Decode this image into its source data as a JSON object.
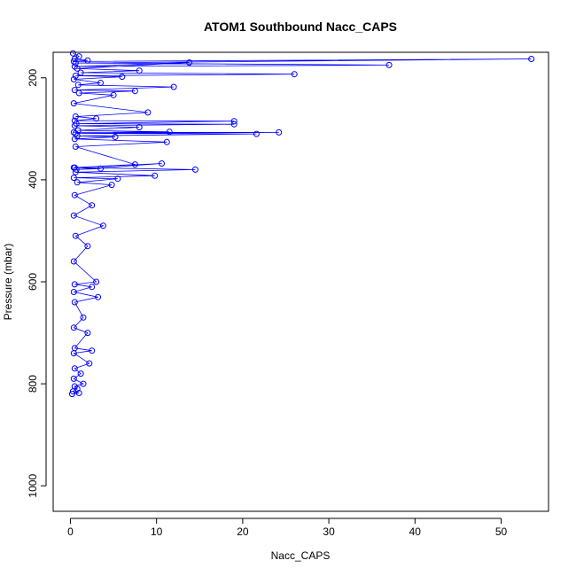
{
  "chart_data": {
    "type": "scatter",
    "title": "ATOM1 Southbound Nacc_CAPS",
    "xlabel": "Nacc_CAPS",
    "ylabel": "Pressure (mbar)",
    "xlim": [
      -2,
      55.5
    ],
    "ylim": [
      1050,
      150
    ],
    "y_reversed": true,
    "x_ticks": [
      0,
      10,
      20,
      30,
      40,
      50
    ],
    "y_ticks": [
      200,
      400,
      600,
      800,
      1000
    ],
    "grid": false,
    "legend": "none",
    "marker": "open-circle",
    "connected": true,
    "color": "#0000ff",
    "series": [
      {
        "x": [
          0.3,
          1.0,
          0.5,
          2.0,
          0.4,
          53.5,
          0.6,
          37.0,
          0.5,
          13.8,
          0.8,
          8.0,
          1.2,
          26.0,
          0.6,
          6.0,
          0.4,
          3.5,
          0.9,
          12.0,
          0.5,
          7.5,
          1.0,
          5.0,
          0.4,
          9.0,
          0.6,
          3.0,
          0.5,
          19.0,
          0.7,
          19.0,
          0.5,
          8.0,
          0.9,
          11.5,
          0.4,
          24.2,
          0.6,
          21.6,
          0.8,
          5.2,
          0.5,
          11.2,
          0.6,
          7.5,
          0.4,
          3.5,
          0.7,
          10.6,
          0.5,
          14.5,
          0.6,
          9.8,
          0.4,
          5.5,
          0.8,
          4.8,
          0.5,
          2.5,
          0.4,
          3.8,
          0.6,
          2.0,
          0.4,
          3.0,
          0.5,
          2.5,
          0.4,
          3.2,
          0.5,
          1.5,
          0.4,
          2.0,
          0.5,
          2.5,
          0.4,
          2.2,
          0.5,
          1.2,
          0.4,
          1.5,
          0.5,
          0.8,
          0.3,
          1.0,
          0.2
        ],
        "y": [
          152,
          158,
          163,
          166,
          168,
          163,
          171,
          175,
          178,
          170,
          182,
          186,
          190,
          193,
          196,
          198,
          203,
          210,
          214,
          218,
          224,
          226,
          230,
          234,
          250,
          268,
          276,
          280,
          284,
          285,
          290,
          291,
          294,
          297,
          303,
          306,
          307,
          307,
          309,
          310,
          314,
          316,
          320,
          326,
          335,
          370,
          376,
          378,
          380,
          368,
          376,
          380,
          385,
          392,
          396,
          398,
          405,
          410,
          430,
          450,
          470,
          490,
          510,
          530,
          560,
          600,
          605,
          610,
          620,
          630,
          640,
          670,
          690,
          700,
          730,
          735,
          740,
          760,
          770,
          780,
          790,
          800,
          805,
          810,
          815,
          818,
          820
        ]
      }
    ]
  }
}
